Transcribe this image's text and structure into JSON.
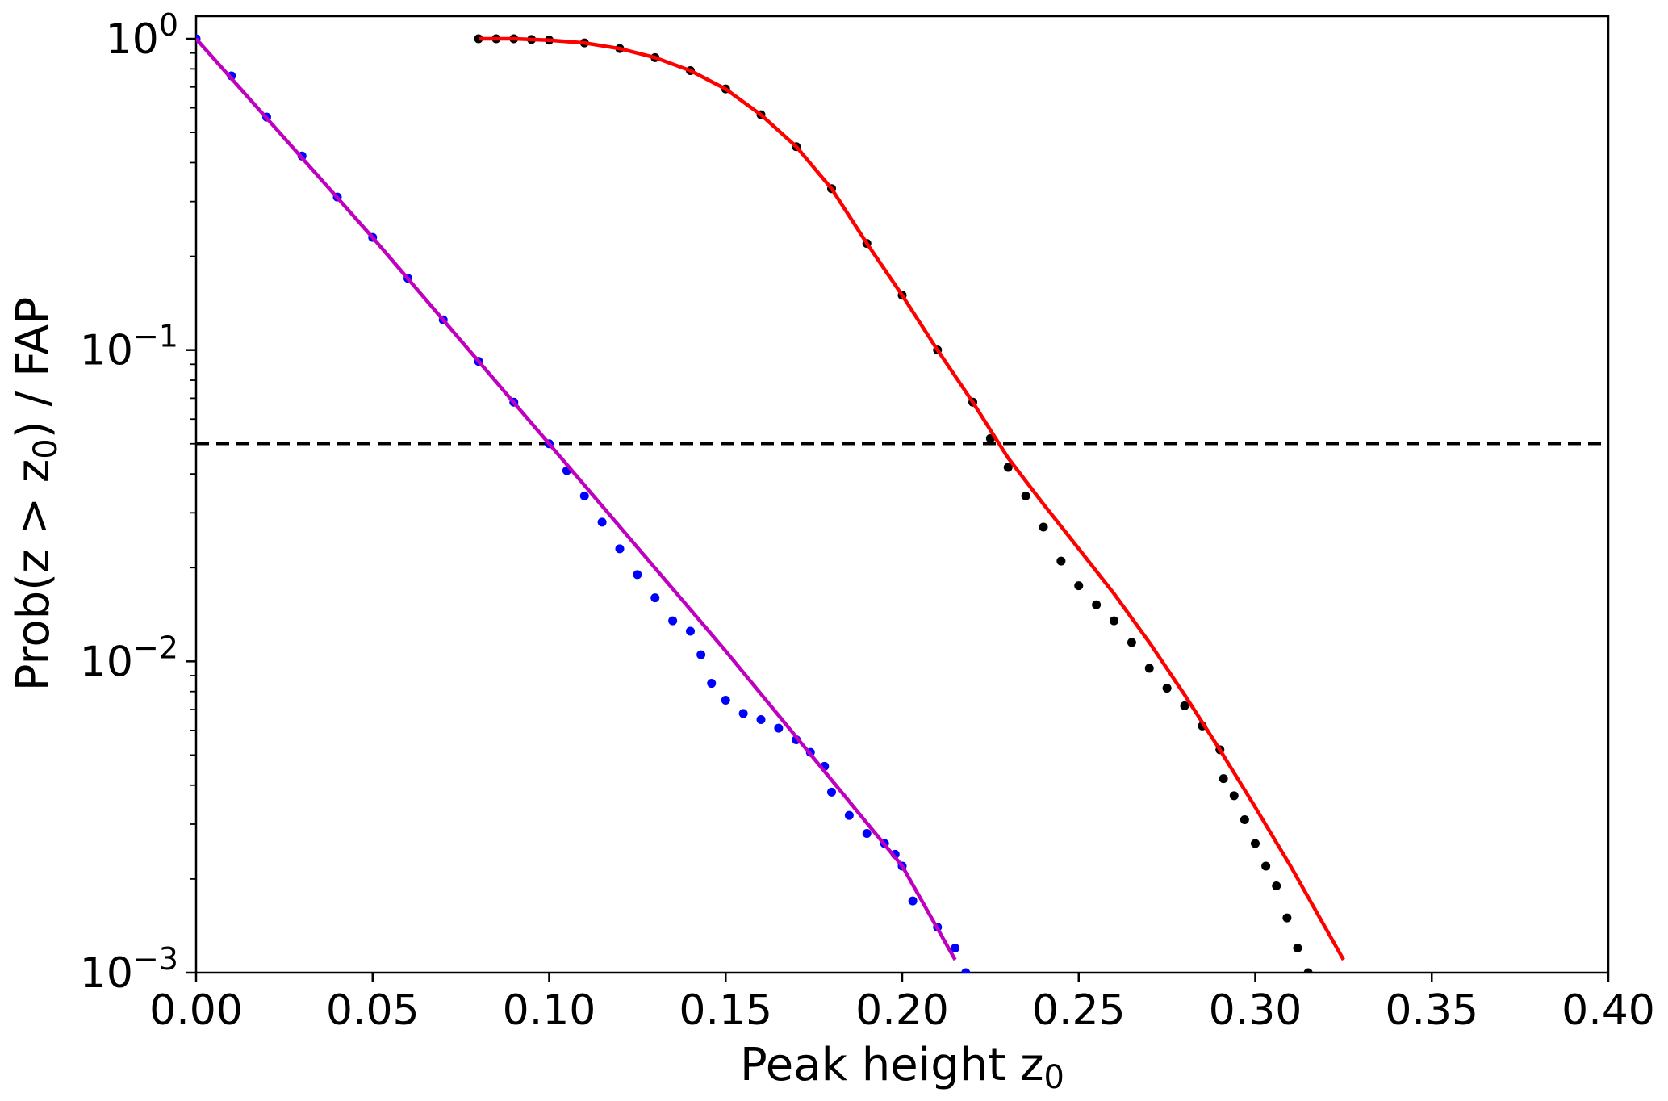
{
  "chart_data": {
    "type": "scatter",
    "xlabel": "Peak height z",
    "xlabel_sub": "0",
    "ylabel_parts": [
      "Prob(z  >  z",
      "0",
      ") / FAP"
    ],
    "xlim": [
      0.0,
      0.4
    ],
    "ylim": [
      0.001,
      1.0
    ],
    "yscale": "log",
    "grid": false,
    "legend": "none",
    "x_ticks": [
      {
        "value": 0.0,
        "label": "0.00"
      },
      {
        "value": 0.05,
        "label": "0.05"
      },
      {
        "value": 0.1,
        "label": "0.10"
      },
      {
        "value": 0.15,
        "label": "0.15"
      },
      {
        "value": 0.2,
        "label": "0.20"
      },
      {
        "value": 0.25,
        "label": "0.25"
      },
      {
        "value": 0.3,
        "label": "0.30"
      },
      {
        "value": 0.35,
        "label": "0.35"
      },
      {
        "value": 0.4,
        "label": "0.40"
      }
    ],
    "y_ticks": [
      {
        "value": 1.0,
        "base": "10",
        "exp": "0"
      },
      {
        "value": 0.1,
        "base": "10",
        "exp": "−1"
      },
      {
        "value": 0.01,
        "base": "10",
        "exp": "−2"
      },
      {
        "value": 0.001,
        "base": "10",
        "exp": "−3"
      }
    ],
    "reference_line": {
      "y": 0.05,
      "style": "dashed",
      "color": "#000000"
    },
    "series": [
      {
        "kind": "points",
        "color": "#0000ff",
        "x": [
          0.0,
          0.01,
          0.02,
          0.03,
          0.04,
          0.05,
          0.06,
          0.07,
          0.08,
          0.09,
          0.1,
          0.105,
          0.11,
          0.115,
          0.12,
          0.125,
          0.13,
          0.135,
          0.14,
          0.143,
          0.146,
          0.15,
          0.155,
          0.16,
          0.165,
          0.17,
          0.174,
          0.178,
          0.18,
          0.185,
          0.19,
          0.195,
          0.198,
          0.2,
          0.203,
          0.21,
          0.215,
          0.218
        ],
        "y": [
          1.0,
          0.76,
          0.56,
          0.42,
          0.31,
          0.23,
          0.17,
          0.125,
          0.092,
          0.068,
          0.05,
          0.041,
          0.034,
          0.028,
          0.023,
          0.019,
          0.016,
          0.0135,
          0.0125,
          0.0105,
          0.0085,
          0.0075,
          0.0068,
          0.0065,
          0.0061,
          0.0056,
          0.0051,
          0.0046,
          0.0038,
          0.0032,
          0.0028,
          0.0026,
          0.0024,
          0.0022,
          0.0017,
          0.0014,
          0.0012,
          0.001
        ]
      },
      {
        "kind": "line",
        "color": "#bf00bf",
        "x": [
          0.0,
          0.05,
          0.1,
          0.15,
          0.2,
          0.215
        ],
        "y": [
          1.0,
          0.23,
          0.05,
          0.0108,
          0.0022,
          0.0011
        ]
      },
      {
        "kind": "points",
        "color": "#000000",
        "x": [
          0.08,
          0.085,
          0.09,
          0.095,
          0.1,
          0.11,
          0.12,
          0.13,
          0.14,
          0.15,
          0.16,
          0.17,
          0.18,
          0.19,
          0.2,
          0.21,
          0.22,
          0.225,
          0.23,
          0.235,
          0.24,
          0.245,
          0.25,
          0.255,
          0.26,
          0.265,
          0.27,
          0.275,
          0.28,
          0.285,
          0.29,
          0.291,
          0.294,
          0.297,
          0.3,
          0.303,
          0.306,
          0.309,
          0.312,
          0.315
        ],
        "y": [
          1.0,
          1.0,
          1.0,
          0.995,
          0.99,
          0.97,
          0.93,
          0.87,
          0.79,
          0.69,
          0.57,
          0.45,
          0.33,
          0.22,
          0.15,
          0.1,
          0.068,
          0.052,
          0.042,
          0.034,
          0.027,
          0.021,
          0.0175,
          0.0152,
          0.0135,
          0.0115,
          0.0095,
          0.0082,
          0.0072,
          0.0062,
          0.0052,
          0.0042,
          0.0037,
          0.0031,
          0.0026,
          0.0022,
          0.0019,
          0.0015,
          0.0012,
          0.001
        ]
      },
      {
        "kind": "line",
        "color": "#ff0000",
        "x": [
          0.08,
          0.09,
          0.1,
          0.11,
          0.12,
          0.13,
          0.14,
          0.15,
          0.16,
          0.17,
          0.18,
          0.19,
          0.2,
          0.21,
          0.22,
          0.23,
          0.24,
          0.25,
          0.26,
          0.27,
          0.28,
          0.29,
          0.3,
          0.31,
          0.325
        ],
        "y": [
          1.0,
          1.0,
          0.99,
          0.97,
          0.93,
          0.87,
          0.79,
          0.69,
          0.57,
          0.45,
          0.33,
          0.22,
          0.15,
          0.1,
          0.068,
          0.045,
          0.032,
          0.023,
          0.0165,
          0.0115,
          0.0078,
          0.0052,
          0.0034,
          0.0022,
          0.0011
        ]
      }
    ]
  }
}
